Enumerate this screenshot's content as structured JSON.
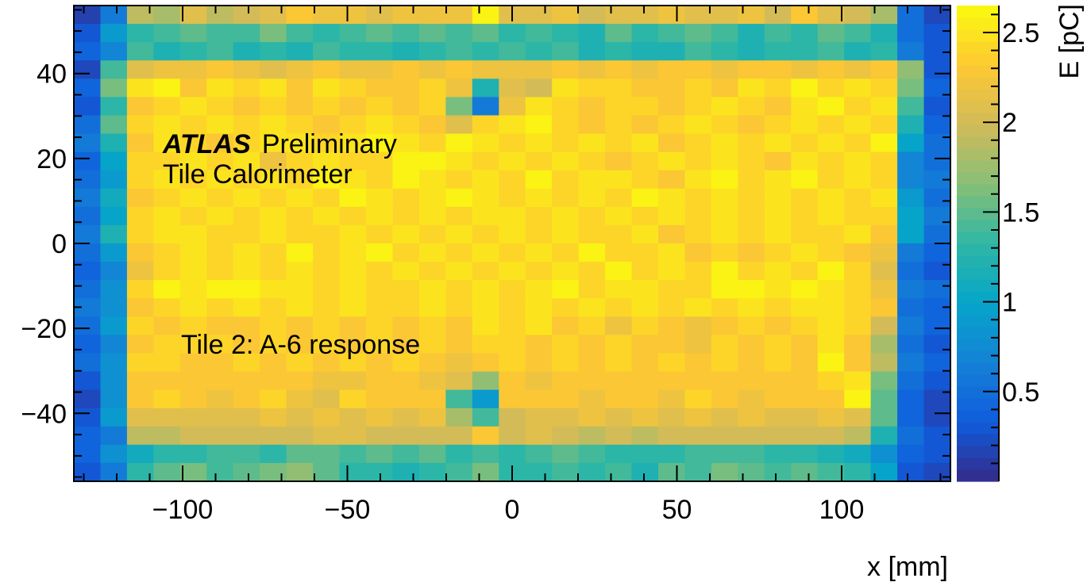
{
  "chart_data": {
    "type": "heatmap",
    "title": "",
    "xlabel": "x [mm]",
    "ylabel": "",
    "zlabel": "E [pC]",
    "xlim": [
      -133,
      133
    ],
    "ylim": [
      -56,
      56
    ],
    "zlim": [
      0,
      2.65
    ],
    "x_bin_width_mm": 8.06,
    "y_bin_width_mm": 4.31,
    "n_x_bins": 33,
    "n_y_bins": 26,
    "x_ticks": [
      {
        "value": -100,
        "label": "−100"
      },
      {
        "value": -50,
        "label": "−50"
      },
      {
        "value": 0,
        "label": "0"
      },
      {
        "value": 50,
        "label": "50"
      },
      {
        "value": 100,
        "label": "100"
      }
    ],
    "y_ticks": [
      {
        "value": 40,
        "label": "40"
      },
      {
        "value": 20,
        "label": "20"
      },
      {
        "value": 0,
        "label": "0"
      },
      {
        "value": -20,
        "label": "−20"
      },
      {
        "value": -40,
        "label": "−40"
      }
    ],
    "z_ticks": [
      {
        "value": 2.5,
        "label": "2.5"
      },
      {
        "value": 2,
        "label": "2"
      },
      {
        "value": 1.5,
        "label": "1.5"
      },
      {
        "value": 1,
        "label": "1"
      },
      {
        "value": 0.5,
        "label": "0.5"
      }
    ],
    "colormap": [
      "#352a87",
      "#0f5cdd",
      "#1481d6",
      "#06a4ca",
      "#2eb7a4",
      "#87bf77",
      "#d1bb59",
      "#fec832",
      "#f9fb0e"
    ],
    "annotations": {
      "experiment": "ATLAS",
      "status": "Preliminary",
      "detector": "Tile Calorimeter",
      "label": "Tile 2: A-6 response"
    },
    "values": [
      [
        0.15,
        0.6,
        1.9,
        1.8,
        2.1,
        1.9,
        2.0,
        2.1,
        2.3,
        2.2,
        2.2,
        2.1,
        2.2,
        2.2,
        2.2,
        2.6,
        2.1,
        2.1,
        2.2,
        2.0,
        2.1,
        2.1,
        2.2,
        2.1,
        2.1,
        2.2,
        2.0,
        2.3,
        2.1,
        2.0,
        1.8,
        0.5,
        0.2
      ],
      [
        0.3,
        0.9,
        1.3,
        1.4,
        1.5,
        1.4,
        1.4,
        1.6,
        1.4,
        1.3,
        1.4,
        1.5,
        1.4,
        1.5,
        1.4,
        1.5,
        1.3,
        1.4,
        1.3,
        1.2,
        1.5,
        1.3,
        1.4,
        1.5,
        1.4,
        1.2,
        1.4,
        1.3,
        1.5,
        1.4,
        1.2,
        0.5,
        0.3
      ],
      [
        0.4,
        0.7,
        1.4,
        1.2,
        1.3,
        1.4,
        1.2,
        1.3,
        1.2,
        1.4,
        1.3,
        1.3,
        1.2,
        1.3,
        1.4,
        1.3,
        1.4,
        1.3,
        1.4,
        1.2,
        1.3,
        1.2,
        1.2,
        1.4,
        1.3,
        1.2,
        1.3,
        1.3,
        1.4,
        1.2,
        1.3,
        0.6,
        0.3
      ],
      [
        0.2,
        1.4,
        2.1,
        2.2,
        2.2,
        2.3,
        2.2,
        2.1,
        2.2,
        2.3,
        2.2,
        2.2,
        2.3,
        2.2,
        2.3,
        2.2,
        2.2,
        2.2,
        2.3,
        2.2,
        2.3,
        2.2,
        2.3,
        2.3,
        2.2,
        2.3,
        2.3,
        2.2,
        2.3,
        2.2,
        2.3,
        1.7,
        0.3
      ],
      [
        0.4,
        1.6,
        2.5,
        2.6,
        2.3,
        2.5,
        2.4,
        2.5,
        2.3,
        2.5,
        2.4,
        2.3,
        2.3,
        2.4,
        2.2,
        1.2,
        2.1,
        2.0,
        2.5,
        2.4,
        2.4,
        2.3,
        2.3,
        2.4,
        2.3,
        2.5,
        2.4,
        2.6,
        2.4,
        2.5,
        2.4,
        1.6,
        0.4
      ],
      [
        0.3,
        1.3,
        2.3,
        2.4,
        2.5,
        2.4,
        2.3,
        2.4,
        2.3,
        2.4,
        2.3,
        2.4,
        2.3,
        2.4,
        1.6,
        0.6,
        2.2,
        2.5,
        2.4,
        2.3,
        2.4,
        2.4,
        2.3,
        2.4,
        2.5,
        2.4,
        2.3,
        2.5,
        2.6,
        2.4,
        2.5,
        1.4,
        0.3
      ],
      [
        0.5,
        1.5,
        2.4,
        2.5,
        2.4,
        2.5,
        2.4,
        2.5,
        2.4,
        2.3,
        2.4,
        2.5,
        2.4,
        2.3,
        2.1,
        2.4,
        2.5,
        2.6,
        2.4,
        2.3,
        2.4,
        2.3,
        2.4,
        2.5,
        2.4,
        2.3,
        2.4,
        2.5,
        2.4,
        2.5,
        2.4,
        1.2,
        0.4
      ],
      [
        0.6,
        1.2,
        2.3,
        2.5,
        2.4,
        2.3,
        2.4,
        2.5,
        2.5,
        2.4,
        2.5,
        2.6,
        2.5,
        2.4,
        2.6,
        2.5,
        2.4,
        2.5,
        2.4,
        2.5,
        2.4,
        2.5,
        2.3,
        2.4,
        2.5,
        2.4,
        2.5,
        2.4,
        2.5,
        2.4,
        2.6,
        1.0,
        0.5
      ],
      [
        0.4,
        1.0,
        2.4,
        2.4,
        2.5,
        2.4,
        2.5,
        2.2,
        2.4,
        2.5,
        2.4,
        2.4,
        2.6,
        2.6,
        2.5,
        2.4,
        2.5,
        2.4,
        2.5,
        2.4,
        2.3,
        2.4,
        2.5,
        2.4,
        2.5,
        2.4,
        2.3,
        2.5,
        2.4,
        2.5,
        2.4,
        0.7,
        0.5
      ],
      [
        0.5,
        0.9,
        2.4,
        2.5,
        2.4,
        2.5,
        2.4,
        2.5,
        2.4,
        2.6,
        2.5,
        2.4,
        2.6,
        2.5,
        2.4,
        2.5,
        2.4,
        2.6,
        2.4,
        2.5,
        2.5,
        2.4,
        2.3,
        2.5,
        2.6,
        2.4,
        2.5,
        2.6,
        2.4,
        2.5,
        2.4,
        0.7,
        0.6
      ],
      [
        0.6,
        1.1,
        2.3,
        2.4,
        2.5,
        2.4,
        2.5,
        2.4,
        2.5,
        2.4,
        2.6,
        2.5,
        2.4,
        2.5,
        2.6,
        2.5,
        2.4,
        2.5,
        2.4,
        2.5,
        2.4,
        2.6,
        2.5,
        2.4,
        2.5,
        2.4,
        2.5,
        2.4,
        2.5,
        2.4,
        2.5,
        0.9,
        0.5
      ],
      [
        0.5,
        1.0,
        2.4,
        2.5,
        2.4,
        2.5,
        2.4,
        2.5,
        2.4,
        2.5,
        2.4,
        2.5,
        2.4,
        2.5,
        2.4,
        2.5,
        2.5,
        2.4,
        2.5,
        2.4,
        2.5,
        2.4,
        2.5,
        2.4,
        2.5,
        2.4,
        2.5,
        2.4,
        2.5,
        2.4,
        2.4,
        1.0,
        0.6
      ],
      [
        0.6,
        1.2,
        2.4,
        2.5,
        2.5,
        2.4,
        2.4,
        2.5,
        2.4,
        2.4,
        2.5,
        2.4,
        2.5,
        2.4,
        2.5,
        2.4,
        2.5,
        2.4,
        2.5,
        2.4,
        2.4,
        2.5,
        2.3,
        2.4,
        2.5,
        2.4,
        2.5,
        2.4,
        2.4,
        2.5,
        2.3,
        1.0,
        0.5
      ],
      [
        0.5,
        0.9,
        2.3,
        2.4,
        2.5,
        2.4,
        2.5,
        2.4,
        2.6,
        2.4,
        2.5,
        2.6,
        2.4,
        2.5,
        2.4,
        2.5,
        2.4,
        2.5,
        2.4,
        2.6,
        2.4,
        2.4,
        2.5,
        2.3,
        2.4,
        2.3,
        2.4,
        2.5,
        2.4,
        2.3,
        2.2,
        0.6,
        0.4
      ],
      [
        0.4,
        0.7,
        2.2,
        2.4,
        2.5,
        2.4,
        2.5,
        2.4,
        2.5,
        2.4,
        2.5,
        2.4,
        2.5,
        2.4,
        2.5,
        2.4,
        2.5,
        2.4,
        2.5,
        2.4,
        2.6,
        2.4,
        2.5,
        2.4,
        2.6,
        2.4,
        2.5,
        2.4,
        2.6,
        2.4,
        2.1,
        0.5,
        0.3
      ],
      [
        0.5,
        0.8,
        2.4,
        2.6,
        2.5,
        2.6,
        2.6,
        2.5,
        2.5,
        2.4,
        2.5,
        2.4,
        2.4,
        2.5,
        2.4,
        2.5,
        2.4,
        2.5,
        2.6,
        2.4,
        2.5,
        2.5,
        2.4,
        2.4,
        2.6,
        2.6,
        2.5,
        2.6,
        2.5,
        2.4,
        2.2,
        0.6,
        0.5
      ],
      [
        0.6,
        0.8,
        2.3,
        2.4,
        2.5,
        2.4,
        2.5,
        2.4,
        2.5,
        2.4,
        2.5,
        2.4,
        2.4,
        2.5,
        2.4,
        2.5,
        2.4,
        2.5,
        2.4,
        2.5,
        2.4,
        2.5,
        2.4,
        2.5,
        2.4,
        2.5,
        2.4,
        2.5,
        2.5,
        2.4,
        2.3,
        0.5,
        0.4
      ],
      [
        0.5,
        0.9,
        2.4,
        2.3,
        2.4,
        2.3,
        2.3,
        2.4,
        2.3,
        2.4,
        2.3,
        2.4,
        2.3,
        2.4,
        2.3,
        2.5,
        2.4,
        2.5,
        2.3,
        2.4,
        2.2,
        2.4,
        2.3,
        2.2,
        2.3,
        2.4,
        2.3,
        2.4,
        2.5,
        2.4,
        2.0,
        0.6,
        0.4
      ],
      [
        0.4,
        0.7,
        2.3,
        2.4,
        2.4,
        2.4,
        2.3,
        2.4,
        2.3,
        2.4,
        2.3,
        2.4,
        2.3,
        2.4,
        2.3,
        2.4,
        2.4,
        2.3,
        2.4,
        2.3,
        2.4,
        2.3,
        2.3,
        2.2,
        2.4,
        2.3,
        2.4,
        2.3,
        2.5,
        2.3,
        1.8,
        0.5,
        0.3
      ],
      [
        0.5,
        0.8,
        2.4,
        2.4,
        2.3,
        2.3,
        2.4,
        2.3,
        2.4,
        2.3,
        2.4,
        2.3,
        2.4,
        2.3,
        2.2,
        2.3,
        2.4,
        2.3,
        2.4,
        2.3,
        2.4,
        2.3,
        2.4,
        2.3,
        2.4,
        2.3,
        2.4,
        2.3,
        2.6,
        2.3,
        1.9,
        0.6,
        0.4
      ],
      [
        0.3,
        0.8,
        2.3,
        2.3,
        2.3,
        2.3,
        2.3,
        2.3,
        2.3,
        2.2,
        2.2,
        2.3,
        2.3,
        2.2,
        2.1,
        1.7,
        2.3,
        2.2,
        2.3,
        2.3,
        2.3,
        2.3,
        2.3,
        2.3,
        2.3,
        2.3,
        2.3,
        2.3,
        2.4,
        2.5,
        1.6,
        0.5,
        0.3
      ],
      [
        0.2,
        0.8,
        2.3,
        2.4,
        2.3,
        2.2,
        2.3,
        2.4,
        2.2,
        2.1,
        2.4,
        2.3,
        2.3,
        2.3,
        1.4,
        0.9,
        2.3,
        2.3,
        2.3,
        2.2,
        2.3,
        2.3,
        2.2,
        2.4,
        2.3,
        2.2,
        2.3,
        2.3,
        2.3,
        2.6,
        1.5,
        0.4,
        0.2
      ],
      [
        0.3,
        0.9,
        2.1,
        2.1,
        2.1,
        2.1,
        2.1,
        2.2,
        2.1,
        2.2,
        2.1,
        2.2,
        2.1,
        2.2,
        1.8,
        1.4,
        2.0,
        2.1,
        2.1,
        2.2,
        2.1,
        2.2,
        2.1,
        2.2,
        2.1,
        2.2,
        2.1,
        2.1,
        2.2,
        2.1,
        1.5,
        0.4,
        0.2
      ],
      [
        0.4,
        0.6,
        1.9,
        1.9,
        2.0,
        2.0,
        2.0,
        2.0,
        2.0,
        2.1,
        2.1,
        2.0,
        2.0,
        2.0,
        2.0,
        2.3,
        2.0,
        2.1,
        2.0,
        1.9,
        2.0,
        1.9,
        2.0,
        2.0,
        2.0,
        2.0,
        2.0,
        2.0,
        2.0,
        1.9,
        1.2,
        0.5,
        0.3
      ],
      [
        0.4,
        0.8,
        1.1,
        1.3,
        1.3,
        1.4,
        1.4,
        1.3,
        1.5,
        1.5,
        1.4,
        1.5,
        1.4,
        1.5,
        1.3,
        1.4,
        1.3,
        1.4,
        1.5,
        1.4,
        1.3,
        1.3,
        1.3,
        1.4,
        1.4,
        1.4,
        1.3,
        1.3,
        1.2,
        1.1,
        0.8,
        0.4,
        0.3
      ],
      [
        0.3,
        0.6,
        1.3,
        1.5,
        1.6,
        1.4,
        1.5,
        1.6,
        1.7,
        1.5,
        1.3,
        1.3,
        1.2,
        1.3,
        1.4,
        1.6,
        1.3,
        1.3,
        1.4,
        1.3,
        1.4,
        1.2,
        1.5,
        1.4,
        1.6,
        1.5,
        1.4,
        1.5,
        1.4,
        1.3,
        1.0,
        0.3,
        0.2
      ]
    ]
  }
}
